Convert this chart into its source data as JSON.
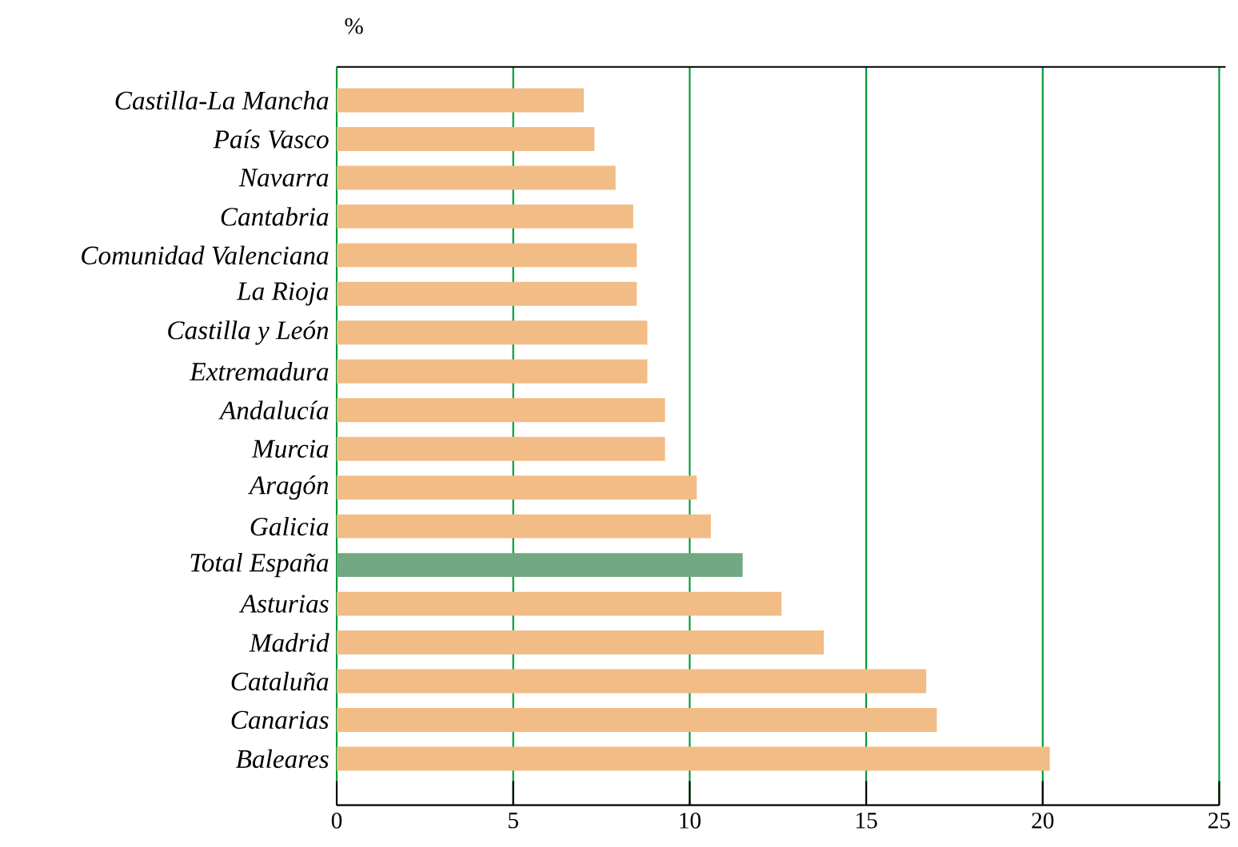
{
  "chart_data": {
    "type": "bar",
    "orientation": "horizontal",
    "xlabel": "%",
    "categories": [
      "Castilla-La Mancha",
      "País Vasco",
      "Navarra",
      "Cantabria",
      "Comunidad Valenciana",
      "La Rioja",
      "Castilla y León",
      "Extremadura",
      "Andalucía",
      "Murcia",
      "Aragón",
      "Galicia",
      "Total España",
      "Asturias",
      "Madrid",
      "Cataluña",
      "Canarias",
      "Baleares"
    ],
    "values": [
      7.0,
      7.3,
      7.9,
      8.4,
      8.5,
      8.5,
      8.8,
      8.8,
      9.3,
      9.3,
      10.2,
      10.6,
      11.5,
      12.6,
      13.8,
      16.7,
      17.0,
      20.2
    ],
    "colors": [
      "#f2bc86",
      "#f2bc86",
      "#f2bc86",
      "#f2bc86",
      "#f2bc86",
      "#f2bc86",
      "#f2bc86",
      "#f2bc86",
      "#f2bc86",
      "#f2bc86",
      "#f2bc86",
      "#f2bc86",
      "#72a882",
      "#f2bc86",
      "#f2bc86",
      "#f2bc86",
      "#f2bc86",
      "#f2bc86"
    ],
    "xlim": [
      0,
      25
    ],
    "xticks": [
      0,
      5,
      10,
      15,
      20,
      25
    ],
    "grid": "x"
  }
}
